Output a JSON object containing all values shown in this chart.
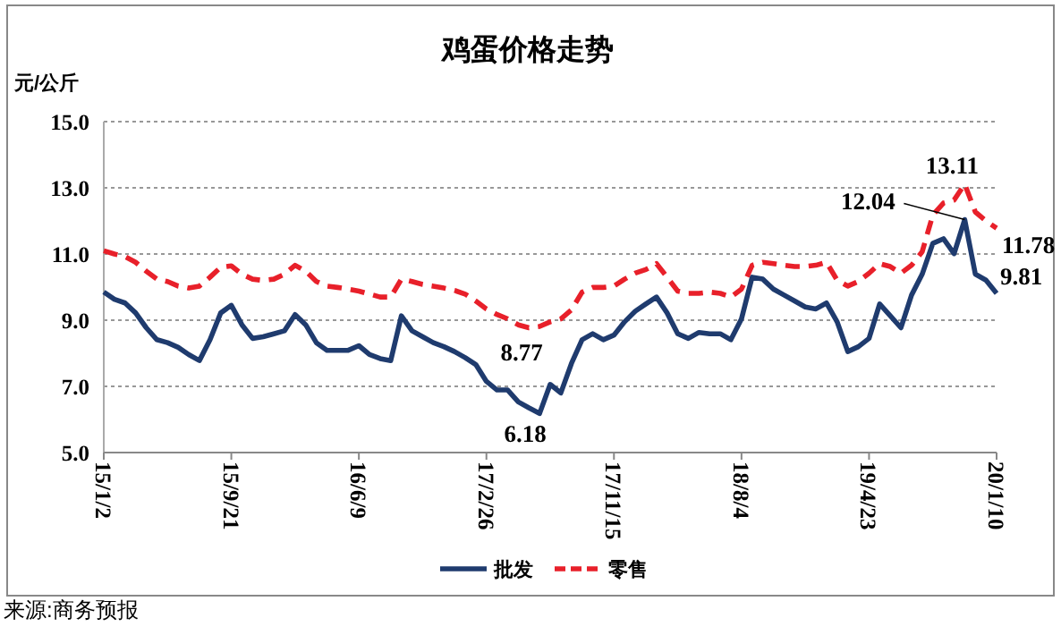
{
  "chart_data": {
    "type": "line",
    "title": "鸡蛋价格走势",
    "ylabel": "元/公斤",
    "categories": [
      "15/1/2",
      null,
      null,
      null,
      null,
      null,
      null,
      null,
      null,
      null,
      null,
      null,
      "15/9/21",
      null,
      null,
      null,
      null,
      null,
      null,
      null,
      null,
      null,
      null,
      null,
      "16/6/9",
      null,
      null,
      null,
      null,
      null,
      null,
      null,
      null,
      null,
      null,
      null,
      "17/2/26",
      null,
      null,
      null,
      null,
      null,
      null,
      null,
      null,
      null,
      null,
      null,
      "17/11/15",
      null,
      null,
      null,
      null,
      null,
      null,
      null,
      null,
      null,
      null,
      null,
      "18/8/4",
      null,
      null,
      null,
      null,
      null,
      null,
      null,
      null,
      null,
      null,
      null,
      "19/4/23",
      null,
      null,
      null,
      null,
      null,
      null,
      null,
      null,
      null,
      null,
      null,
      "20/1/10"
    ],
    "series": [
      {
        "name": "批发",
        "color": "#1f3b6e",
        "line_style": "solid",
        "value_labels": [
          null,
          null,
          null,
          null,
          null,
          null,
          null,
          null,
          null,
          null,
          null,
          null,
          null,
          null,
          null,
          null,
          null,
          null,
          null,
          null,
          null,
          null,
          null,
          null,
          null,
          null,
          null,
          null,
          null,
          null,
          null,
          null,
          null,
          null,
          null,
          null,
          null,
          null,
          null,
          null,
          null,
          "6.18",
          null,
          null,
          null,
          null,
          null,
          null,
          null,
          null,
          null,
          null,
          null,
          null,
          null,
          null,
          null,
          null,
          null,
          null,
          null,
          null,
          null,
          null,
          null,
          null,
          null,
          null,
          null,
          null,
          null,
          null,
          null,
          null,
          null,
          null,
          null,
          null,
          null,
          null,
          null,
          "12.04",
          null,
          null,
          "9.81"
        ],
        "values": [
          9.85,
          9.63,
          9.52,
          9.22,
          8.77,
          8.41,
          8.32,
          8.18,
          7.96,
          7.78,
          8.41,
          9.22,
          9.45,
          8.86,
          8.45,
          8.5,
          8.59,
          8.68,
          9.17,
          8.86,
          8.32,
          8.09,
          8.09,
          8.09,
          8.23,
          7.96,
          7.84,
          7.78,
          9.13,
          8.68,
          8.5,
          8.32,
          8.2,
          8.05,
          7.87,
          7.66,
          7.15,
          6.89,
          6.89,
          6.53,
          6.35,
          6.18,
          7.06,
          6.8,
          7.69,
          8.41,
          8.59,
          8.41,
          8.55,
          8.95,
          9.27,
          9.49,
          9.7,
          9.22,
          8.59,
          8.45,
          8.63,
          8.59,
          8.59,
          8.41,
          9.04,
          10.3,
          10.24,
          9.94,
          9.76,
          9.58,
          9.4,
          9.34,
          9.52,
          8.95,
          8.05,
          8.2,
          8.45,
          9.49,
          9.13,
          8.77,
          9.76,
          10.39,
          11.32,
          11.46,
          11.01,
          12.04,
          10.39,
          10.21,
          9.81
        ]
      },
      {
        "name": "零售",
        "color": "#e8202a",
        "line_style": "dashed",
        "value_labels": [
          null,
          null,
          null,
          null,
          null,
          null,
          null,
          null,
          null,
          null,
          null,
          null,
          null,
          null,
          null,
          null,
          null,
          null,
          null,
          null,
          null,
          null,
          null,
          null,
          null,
          null,
          null,
          null,
          null,
          null,
          null,
          null,
          null,
          null,
          null,
          null,
          null,
          null,
          null,
          null,
          "8.77",
          null,
          null,
          null,
          null,
          null,
          null,
          null,
          null,
          null,
          null,
          null,
          null,
          null,
          null,
          null,
          null,
          null,
          null,
          null,
          null,
          null,
          null,
          null,
          null,
          null,
          null,
          null,
          null,
          null,
          null,
          null,
          null,
          null,
          null,
          null,
          null,
          null,
          null,
          null,
          null,
          "13.11",
          null,
          null,
          "11.78"
        ],
        "values": [
          11.1,
          11.0,
          10.92,
          10.75,
          10.48,
          10.24,
          10.17,
          10.03,
          9.97,
          10.03,
          10.3,
          10.6,
          10.64,
          10.39,
          10.24,
          10.2,
          10.24,
          10.39,
          10.66,
          10.48,
          10.17,
          10.03,
          9.99,
          9.94,
          9.88,
          9.79,
          9.7,
          9.7,
          10.24,
          10.17,
          10.08,
          10.03,
          9.97,
          9.9,
          9.79,
          9.58,
          9.34,
          9.17,
          9.04,
          8.86,
          8.77,
          8.81,
          8.95,
          9.04,
          9.31,
          9.85,
          9.99,
          9.99,
          10.03,
          10.24,
          10.42,
          10.53,
          10.71,
          10.3,
          9.88,
          9.81,
          9.81,
          9.85,
          9.81,
          9.7,
          9.94,
          10.66,
          10.75,
          10.71,
          10.66,
          10.62,
          10.62,
          10.66,
          10.75,
          10.21,
          10.03,
          10.17,
          10.42,
          10.71,
          10.62,
          10.42,
          10.66,
          11.07,
          12.18,
          12.54,
          12.63,
          13.11,
          12.27,
          12.0,
          11.78
        ]
      }
    ],
    "ylim": [
      5,
      15
    ],
    "yticks": [
      {
        "value": 5,
        "label": "5.0"
      },
      {
        "value": 7,
        "label": "7.0"
      },
      {
        "value": 9,
        "label": "9.0"
      },
      {
        "value": 11,
        "label": "11.0"
      },
      {
        "value": 13,
        "label": "13.0"
      },
      {
        "value": 15,
        "label": "15.0"
      }
    ],
    "grid": "y",
    "legend": "bottom",
    "marker": "none",
    "annotations": [
      "来源:商务预报"
    ]
  }
}
